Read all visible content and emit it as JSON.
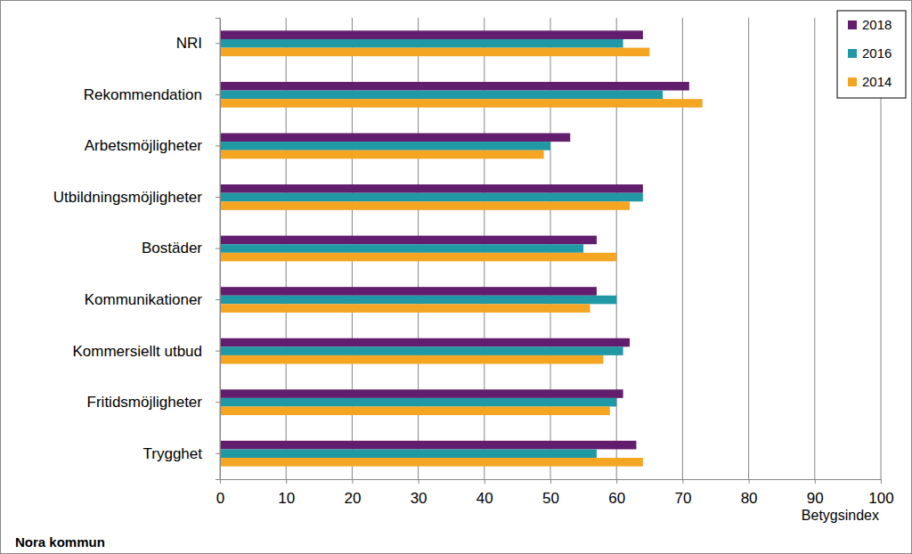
{
  "chart_data": {
    "type": "bar",
    "orientation": "horizontal",
    "categories": [
      "NRI",
      "Rekommendation",
      "Arbetsmöjligheter",
      "Utbildningsmöjligheter",
      "Bostäder",
      "Kommunikationer",
      "Kommersiellt utbud",
      "Fritidsmöjligheter",
      "Trygghet"
    ],
    "series": [
      {
        "name": "2018",
        "color": "#621d6e",
        "values": [
          64,
          71,
          53,
          64,
          57,
          57,
          62,
          61,
          63
        ]
      },
      {
        "name": "2016",
        "color": "#2199a4",
        "values": [
          61,
          67,
          50,
          64,
          55,
          60,
          61,
          60,
          57
        ]
      },
      {
        "name": "2014",
        "color": "#f4a522",
        "values": [
          65,
          73,
          49,
          62,
          60,
          56,
          58,
          59,
          64
        ]
      }
    ],
    "x_label": "Betygsindex",
    "annotations": [
      "Nora kommun"
    ],
    "xlim": [
      0,
      100
    ],
    "xticks": [
      0,
      10,
      20,
      30,
      40,
      50,
      60,
      70,
      80,
      90,
      100
    ],
    "grid": true,
    "legend": "top-right"
  }
}
